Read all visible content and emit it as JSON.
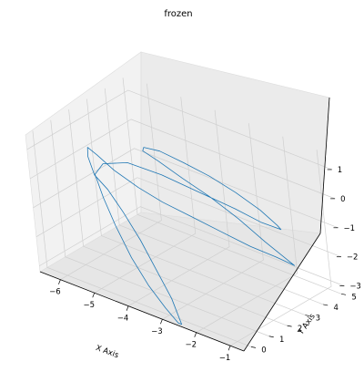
{
  "chart_data": {
    "type": "line3d",
    "title": "frozen",
    "xlabel": "X Axis",
    "ylabel": "Y Axis",
    "zlabel": "",
    "x_ticks": [
      "−6",
      "−5",
      "−4",
      "−3",
      "−2",
      "−1"
    ],
    "y_ticks": [
      "0",
      "1",
      "2",
      "3",
      "4",
      "5"
    ],
    "z_ticks": [
      "1",
      "0",
      "−1",
      "−2",
      "−3"
    ],
    "xlim": [
      -6.6,
      -0.6
    ],
    "ylim": [
      -0.4,
      5.2
    ],
    "zlim": [
      -3.2,
      1.5
    ],
    "grid": true,
    "series": [
      {
        "color": "#1f77b4",
        "points": [
          [
            -5.2,
            0.6,
            0.4
          ],
          [
            -5.4,
            0.7,
            0.9
          ],
          [
            -5.5,
            0.9,
            1.1
          ],
          [
            -5.3,
            1.0,
            0.9
          ],
          [
            -5.0,
            1.3,
            0.4
          ],
          [
            -4.6,
            1.8,
            -0.2
          ],
          [
            -4.2,
            2.3,
            -0.7
          ],
          [
            -3.7,
            2.9,
            -1.2
          ],
          [
            -3.2,
            3.5,
            -1.7
          ],
          [
            -2.7,
            4.1,
            -2.2
          ],
          [
            -2.3,
            4.7,
            -2.6
          ],
          [
            -2.0,
            5.1,
            -2.9
          ],
          [
            -2.2,
            5.0,
            -2.7
          ],
          [
            -2.6,
            4.7,
            -2.2
          ],
          [
            -3.1,
            4.3,
            -1.5
          ],
          [
            -3.6,
            3.8,
            -0.8
          ],
          [
            -4.1,
            3.3,
            -0.2
          ],
          [
            -4.5,
            2.8,
            0.4
          ],
          [
            -4.7,
            2.4,
            0.8
          ],
          [
            -4.6,
            2.3,
            1.0
          ],
          [
            -4.3,
            2.6,
            0.9
          ],
          [
            -3.9,
            3.1,
            0.5
          ],
          [
            -3.5,
            3.7,
            0.0
          ],
          [
            -3.1,
            4.3,
            -0.6
          ],
          [
            -2.7,
            4.8,
            -1.2
          ],
          [
            -2.4,
            5.1,
            -1.7
          ],
          [
            -2.3,
            5.1,
            -1.8
          ],
          [
            -2.6,
            4.6,
            -1.5
          ],
          [
            -3.0,
            4.0,
            -1.0
          ],
          [
            -3.6,
            3.2,
            -0.4
          ],
          [
            -4.2,
            2.4,
            0.2
          ],
          [
            -4.8,
            1.7,
            0.6
          ],
          [
            -5.2,
            1.1,
            0.6
          ],
          [
            -5.3,
            0.8,
            0.3
          ],
          [
            -5.0,
            0.6,
            -0.3
          ],
          [
            -4.6,
            0.4,
            -1.0
          ],
          [
            -4.1,
            0.2,
            -1.8
          ],
          [
            -3.6,
            0.1,
            -2.5
          ],
          [
            -3.1,
            0.0,
            -3.0
          ],
          [
            -2.7,
            -0.1,
            -3.3
          ],
          [
            -2.6,
            -0.1,
            -3.3
          ],
          [
            -3.0,
            0.2,
            -2.7
          ],
          [
            -3.5,
            0.4,
            -2.0
          ],
          [
            -4.0,
            0.6,
            -1.3
          ],
          [
            -4.5,
            0.7,
            -0.6
          ],
          [
            -4.9,
            0.7,
            0.0
          ],
          [
            -5.2,
            0.6,
            0.4
          ]
        ]
      }
    ]
  }
}
